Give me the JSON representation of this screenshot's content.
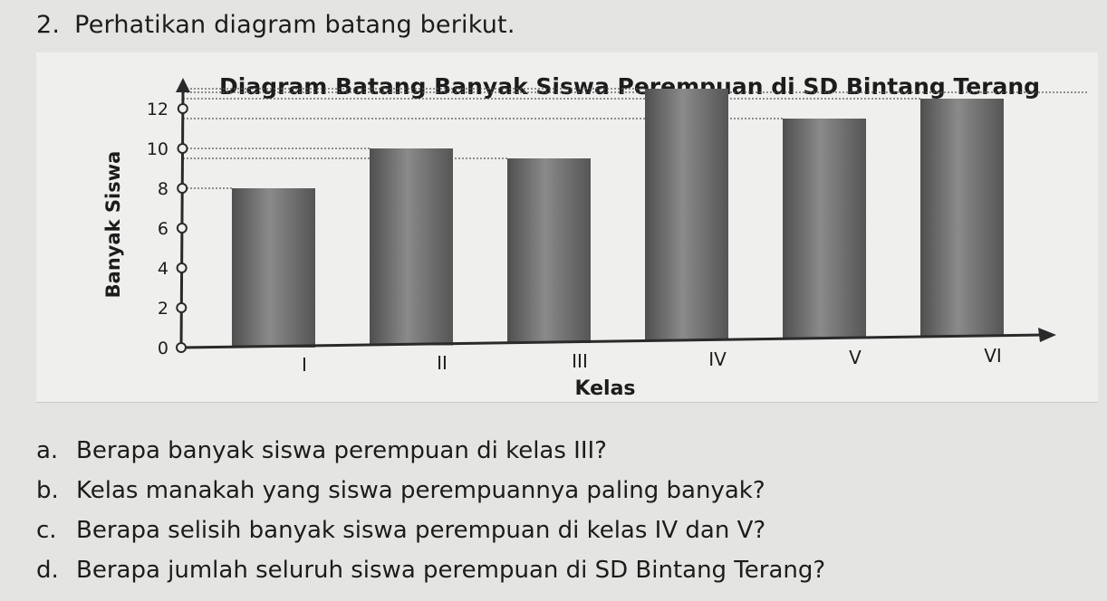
{
  "question": {
    "number": "2.",
    "prompt": "Perhatikan diagram batang berikut."
  },
  "chart_data": {
    "type": "bar",
    "title": "Diagram Batang Banyak Siswa Perempuan di SD Bintang Terang",
    "xlabel": "Kelas",
    "ylabel": "Banyak Siswa",
    "categories": [
      "I",
      "II",
      "III",
      "IV",
      "V",
      "VI"
    ],
    "values": [
      8,
      10,
      9.5,
      13,
      11.5,
      12.5
    ],
    "ylim": [
      0,
      12
    ],
    "yticks": [
      0,
      2,
      4,
      6,
      8,
      10,
      12
    ],
    "grid": "dashed reference lines from bar tops",
    "legend": "none",
    "bar_color": "#6f6f6f"
  },
  "sub_questions": [
    {
      "letter": "a.",
      "text": "Berapa banyak siswa perempuan di kelas III?"
    },
    {
      "letter": "b.",
      "text": "Kelas manakah yang siswa perempuannya paling banyak?"
    },
    {
      "letter": "c.",
      "text": "Berapa selisih banyak siswa perempuan di kelas IV dan V?"
    },
    {
      "letter": "d.",
      "text": "Berapa jumlah seluruh siswa perempuan di SD Bintang Terang?"
    }
  ]
}
